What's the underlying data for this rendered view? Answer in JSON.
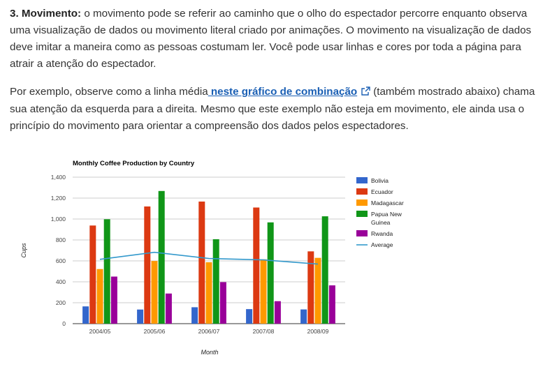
{
  "text": {
    "p1_bold": "3. Movimento:",
    "p1_rest": " o movimento pode se referir ao caminho que o olho do espectador percorre enquanto observa uma visualização de dados ou movimento literal criado por animações. O movimento na visualização de dados deve imitar a maneira como as pessoas costumam ler. Você pode usar linhas e cores por toda a página para atrair a atenção do espectador.",
    "p2_before": "Por exemplo, observe como a linha média",
    "p2_link": " neste gráfico de combinação",
    "p2_after": "(também mostrado abaixo) chama sua atenção da esquerda para a direita. Mesmo que este exemplo não esteja em movimento, ele ainda usa o princípio do movimento para orientar a compreensão dos dados pelos espectadores."
  },
  "icons": {
    "external_link": "external-link-icon"
  },
  "colors": {
    "link": "#1a5fb4",
    "text": "#333333"
  },
  "chart_data": {
    "type": "bar",
    "title": "Monthly Coffee Production by Country",
    "xlabel": "Month",
    "ylabel": "Cups",
    "ylim": [
      0,
      1400
    ],
    "yticks": [
      "0",
      "200",
      "400",
      "600",
      "800",
      "1,000",
      "1,200",
      "1,400"
    ],
    "categories": [
      "2004/05",
      "2005/06",
      "2006/07",
      "2007/08",
      "2008/09"
    ],
    "grid": true,
    "legend_position": "right",
    "series": [
      {
        "name": "Bolivia",
        "color": "#3366cc",
        "values": [
          165,
          135,
          157,
          139,
          136
        ]
      },
      {
        "name": "Ecuador",
        "color": "#dc3912",
        "values": [
          938,
          1120,
          1167,
          1110,
          691
        ]
      },
      {
        "name": "Madagascar",
        "color": "#ff9900",
        "values": [
          522,
          599,
          587,
          615,
          629
        ]
      },
      {
        "name": "Papua New Guinea",
        "color": "#109618",
        "values": [
          998,
          1268,
          807,
          968,
          1026
        ]
      },
      {
        "name": "Rwanda",
        "color": "#990099",
        "values": [
          450,
          288,
          397,
          215,
          366
        ]
      }
    ],
    "line_series": {
      "name": "Average",
      "color": "#3399cc",
      "values": [
        614.6,
        682,
        623,
        609.4,
        569.6
      ]
    },
    "legend_labels": [
      {
        "lines": [
          "Bolivia"
        ],
        "color": "#3366cc",
        "kind": "box"
      },
      {
        "lines": [
          "Ecuador"
        ],
        "color": "#dc3912",
        "kind": "box"
      },
      {
        "lines": [
          "Madagascar"
        ],
        "color": "#ff9900",
        "kind": "box"
      },
      {
        "lines": [
          "Papua New",
          "Guinea"
        ],
        "color": "#109618",
        "kind": "box"
      },
      {
        "lines": [
          "Rwanda"
        ],
        "color": "#990099",
        "kind": "box"
      },
      {
        "lines": [
          "Average"
        ],
        "color": "#3399cc",
        "kind": "line"
      }
    ]
  }
}
